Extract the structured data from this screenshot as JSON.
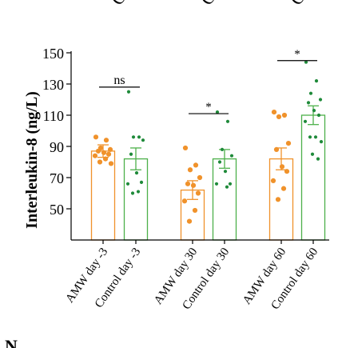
{
  "chart_data": {
    "type": "bar",
    "ylabel": "Interleukin-8 (ng/L)",
    "ylim": [
      30,
      150
    ],
    "yticks": [
      50,
      70,
      90,
      110,
      130,
      150
    ],
    "categories": [
      "AMW day -3",
      "Control day -3",
      "AMW day 30",
      "Control day 30",
      "AMW day 60",
      "Control day 60"
    ],
    "values": [
      87,
      82,
      62,
      82,
      82,
      110
    ],
    "errors": [
      4,
      7,
      6,
      6,
      7,
      6
    ],
    "colors": {
      "AMW": "#f0922b",
      "Control": "#4db04a"
    },
    "points": [
      [
        96,
        94,
        89,
        88,
        87,
        86,
        85,
        84,
        82,
        80,
        79
      ],
      [
        125,
        96,
        96,
        94,
        85,
        73,
        67,
        66,
        61,
        60
      ],
      [
        89,
        78,
        75,
        70,
        66,
        65,
        60,
        55,
        49,
        42
      ],
      [
        112,
        106,
        88,
        84,
        80,
        74,
        66,
        66,
        64
      ],
      [
        112,
        110,
        109,
        92,
        88,
        77,
        74,
        68,
        63,
        56
      ],
      [
        144,
        132,
        124,
        120,
        118,
        113,
        110,
        106,
        96,
        96,
        93,
        85,
        82
      ]
    ],
    "significance": [
      {
        "pair": [
          0,
          1
        ],
        "label": "ns",
        "y": 128
      },
      {
        "pair": [
          2,
          3
        ],
        "label": "*",
        "y": 111
      },
      {
        "pair": [
          4,
          5
        ],
        "label": "*",
        "y": 145
      }
    ],
    "top_labels": [
      "C",
      "C",
      "C"
    ],
    "corner_label": "N"
  }
}
